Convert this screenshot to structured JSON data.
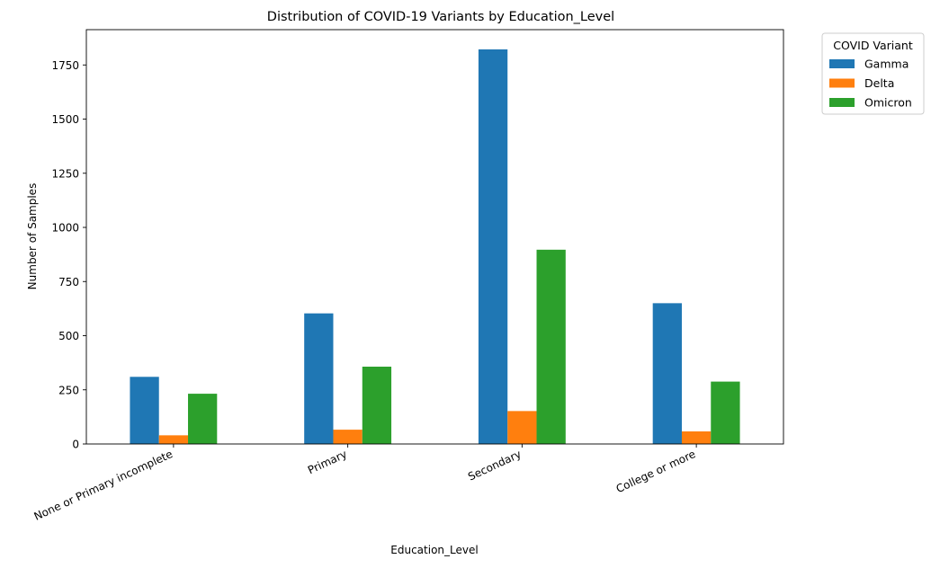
{
  "chart_data": {
    "type": "bar",
    "title": "Distribution of COVID-19 Variants by Education_Level",
    "xlabel": "Education_Level",
    "ylabel": "Number of Samples",
    "categories": [
      "None or Primary incomplete",
      "Primary",
      "Secondary",
      "College or more"
    ],
    "series": [
      {
        "name": "Gamma",
        "values": [
          310,
          603,
          1822,
          650
        ],
        "color": "#1f77b4"
      },
      {
        "name": "Delta",
        "values": [
          40,
          66,
          152,
          58
        ],
        "color": "#ff7f0e"
      },
      {
        "name": "Omicron",
        "values": [
          232,
          357,
          897,
          288
        ],
        "color": "#2ca02c"
      }
    ],
    "yticks": [
      0,
      250,
      500,
      750,
      1000,
      1250,
      1500,
      1750
    ],
    "ylim": [
      0,
      1913
    ],
    "legend": {
      "title": "COVID Variant",
      "placement": "outside-top-right"
    },
    "grid": false
  }
}
